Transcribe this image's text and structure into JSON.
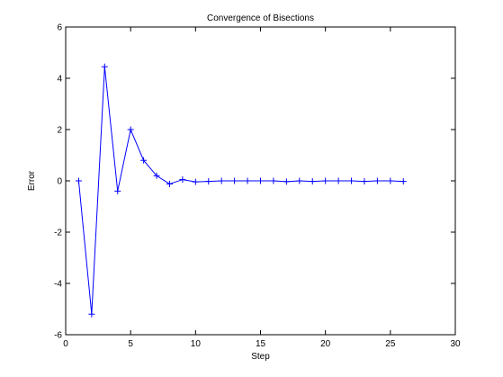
{
  "chart_data": {
    "type": "line",
    "title": "Convergence of Bisections",
    "xlabel": "Step",
    "ylabel": "Error",
    "xlim": [
      0,
      30
    ],
    "ylim": [
      -6,
      6
    ],
    "xticks": [
      0,
      5,
      10,
      15,
      20,
      25,
      30
    ],
    "yticks": [
      -6,
      -4,
      -2,
      0,
      2,
      4,
      6
    ],
    "grid": false,
    "marker": "+",
    "line_color": "#0000ff",
    "series": [
      {
        "x": [
          1,
          2,
          3,
          4,
          5,
          6,
          7,
          8,
          9,
          10,
          11,
          12,
          13,
          14,
          15,
          16,
          17,
          18,
          19,
          20,
          21,
          22,
          23,
          24,
          25,
          26
        ],
        "y": [
          0,
          -5.2,
          4.45,
          -0.4,
          2.0,
          0.8,
          0.2,
          -0.12,
          0.05,
          -0.04,
          -0.02,
          0.0,
          0.0,
          0.0,
          0.0,
          0.0,
          -0.03,
          0.0,
          -0.02,
          0.0,
          0.0,
          0.0,
          -0.02,
          0.0,
          0.0,
          -0.02
        ]
      }
    ]
  }
}
